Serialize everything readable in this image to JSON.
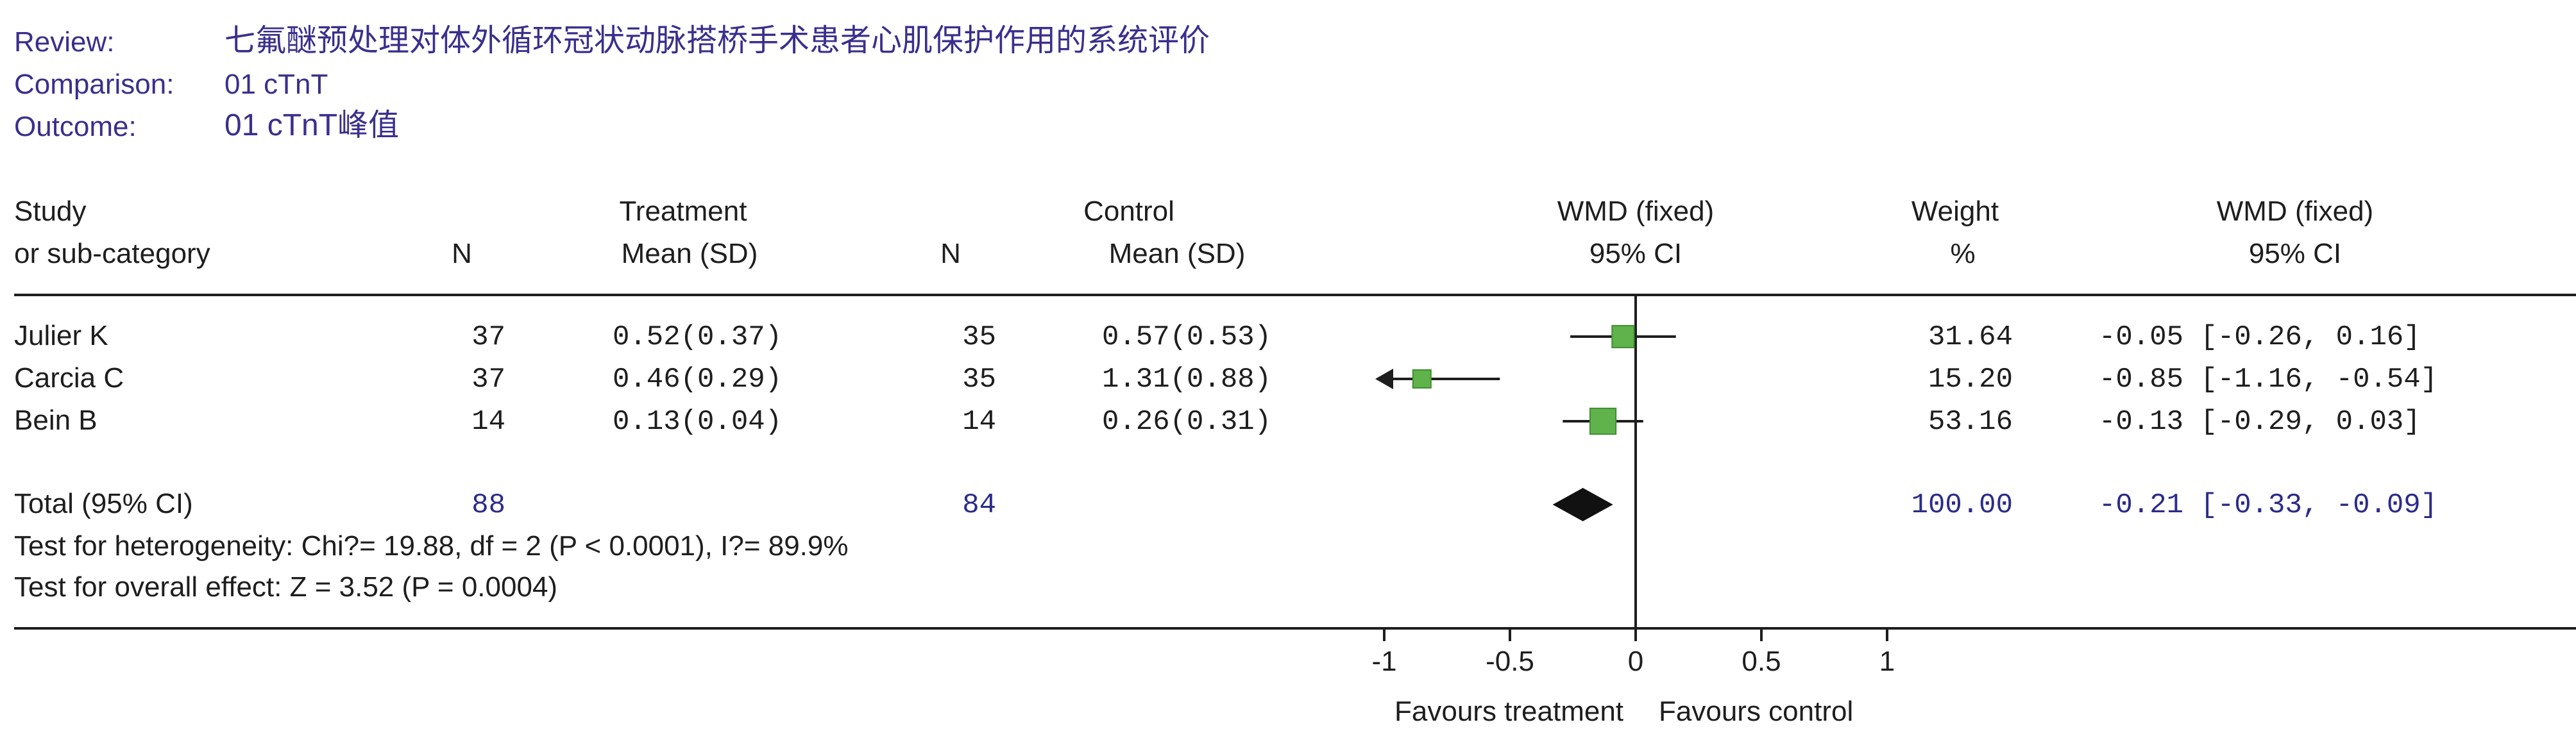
{
  "meta": {
    "review_label": "Review:",
    "review_value": "七氟醚预处理对体外循环冠状动脉搭桥手术患者心肌保护作用的系统评价",
    "comparison_label": "Comparison:",
    "comparison_value": "01 cTnT",
    "outcome_label": "Outcome:",
    "outcome_value": "01 cTnT峰值"
  },
  "headers": {
    "study_1": "Study",
    "study_2": "or sub-category",
    "treatment": "Treatment",
    "control": "Control",
    "n": "N",
    "mean_sd": "Mean (SD)",
    "wmd_plot_1": "WMD (fixed)",
    "wmd_plot_2": "95% CI",
    "weight_1": "Weight",
    "weight_2": "%",
    "wmd_text_1": "WMD (fixed)",
    "wmd_text_2": "95% CI"
  },
  "footer": {
    "heterogeneity": "Test for heterogeneity: Chi?= 19.88, df = 2 (P < 0.0001), I?= 89.9%",
    "overall": "Test for overall effect: Z = 3.52 (P = 0.0004)",
    "favours_treatment": "Favours treatment",
    "favours_control": "Favours control"
  },
  "chart_data": {
    "type": "forest",
    "xlim": [
      -1,
      1
    ],
    "ticks": [
      "-1",
      "-0.5",
      "0",
      "0.5",
      "1"
    ],
    "tick_values": [
      -1,
      -0.5,
      0,
      0.5,
      1
    ],
    "studies": [
      {
        "name": "Julier K",
        "t_n": "37",
        "t_mean_sd": "0.52(0.37)",
        "c_n": "35",
        "c_mean_sd": "0.57(0.53)",
        "weight": "31.64",
        "ci_text": "-0.05 [-0.26, 0.16]",
        "est": -0.05,
        "lo": -0.26,
        "hi": 0.16,
        "w": 31.64
      },
      {
        "name": "Carcia C",
        "t_n": "37",
        "t_mean_sd": "0.46(0.29)",
        "c_n": "35",
        "c_mean_sd": "1.31(0.88)",
        "weight": "15.20",
        "ci_text": "-0.85 [-1.16, -0.54]",
        "est": -0.85,
        "lo": -1.16,
        "hi": -0.54,
        "w": 15.2
      },
      {
        "name": "Bein B",
        "t_n": "14",
        "t_mean_sd": "0.13(0.04)",
        "c_n": "14",
        "c_mean_sd": "0.26(0.31)",
        "weight": "53.16",
        "ci_text": "-0.13 [-0.29, 0.03]",
        "est": -0.13,
        "lo": -0.29,
        "hi": 0.03,
        "w": 53.16
      }
    ],
    "total": {
      "name": "Total (95% CI)",
      "t_n": "88",
      "c_n": "84",
      "weight": "100.00",
      "ci_text": "-0.21 [-0.33, -0.09]",
      "est": -0.21,
      "lo": -0.33,
      "hi": -0.09
    }
  }
}
